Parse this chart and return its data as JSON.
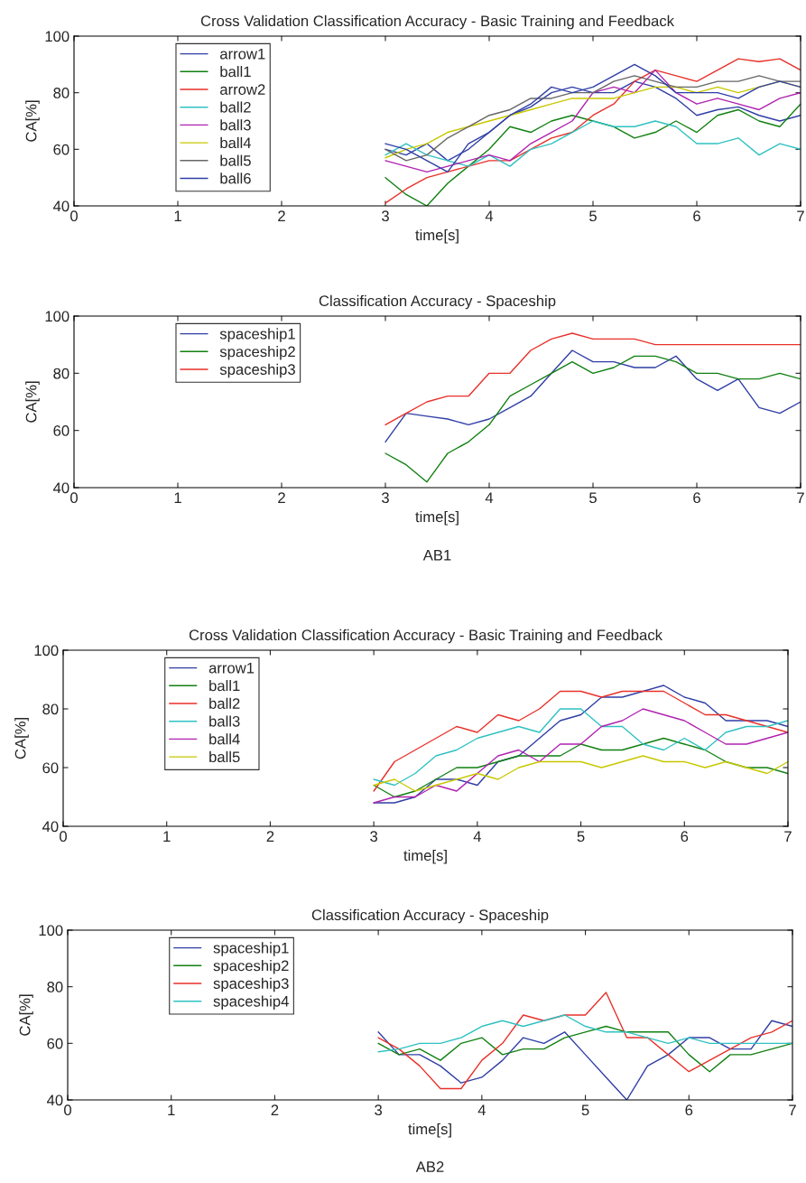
{
  "chart_data": [
    {
      "type": "line",
      "title": "Cross Validation Classification Accuracy - Basic Training and Feedback",
      "xlabel": "time[s]",
      "ylabel": "CA[%]",
      "xlim": [
        0,
        7
      ],
      "xticks": [
        0,
        1,
        2,
        3,
        4,
        5,
        6,
        7
      ],
      "ylim": [
        40,
        100
      ],
      "yticks": [
        40,
        60,
        80,
        100
      ],
      "grid": false,
      "legend": "top left",
      "x": [
        3.0,
        3.2,
        3.4,
        3.6,
        3.8,
        4.0,
        4.2,
        4.4,
        4.6,
        4.8,
        5.0,
        5.2,
        5.4,
        5.6,
        5.8,
        6.0,
        6.2,
        6.4,
        6.6,
        6.8,
        7.0
      ],
      "series": [
        {
          "name": "arrow1",
          "color": "#2f3ea5",
          "values": [
            60,
            58,
            62,
            56,
            60,
            66,
            72,
            75,
            80,
            82,
            80,
            80,
            84,
            82,
            78,
            72,
            74,
            75,
            72,
            70,
            72
          ]
        },
        {
          "name": "ball1",
          "color": "#118011",
          "values": [
            50,
            44,
            40,
            48,
            54,
            60,
            68,
            66,
            70,
            72,
            70,
            68,
            64,
            66,
            70,
            66,
            72,
            74,
            70,
            68,
            76
          ]
        },
        {
          "name": "arrow2",
          "color": "#e8312a",
          "values": [
            41,
            46,
            50,
            52,
            54,
            56,
            56,
            60,
            64,
            66,
            72,
            76,
            84,
            88,
            86,
            84,
            88,
            92,
            91,
            92,
            88
          ]
        },
        {
          "name": "ball2",
          "color": "#2fc1c1",
          "values": [
            58,
            62,
            58,
            56,
            54,
            58,
            54,
            60,
            62,
            66,
            70,
            68,
            68,
            70,
            68,
            62,
            62,
            64,
            58,
            62,
            60
          ]
        },
        {
          "name": "ball3",
          "color": "#b022b0",
          "values": [
            56,
            54,
            52,
            54,
            56,
            58,
            56,
            62,
            66,
            70,
            80,
            82,
            80,
            88,
            80,
            76,
            78,
            76,
            74,
            78,
            80
          ]
        },
        {
          "name": "ball4",
          "color": "#c8c800",
          "values": [
            57,
            60,
            62,
            66,
            68,
            70,
            72,
            74,
            76,
            78,
            78,
            78,
            80,
            82,
            82,
            80,
            82,
            80,
            82,
            84,
            82
          ]
        },
        {
          "name": "ball5",
          "color": "#666666",
          "values": [
            60,
            56,
            58,
            64,
            68,
            72,
            74,
            78,
            78,
            80,
            80,
            84,
            86,
            84,
            82,
            82,
            84,
            84,
            86,
            84,
            84
          ]
        },
        {
          "name": "ball6",
          "color": "#2f3ea5",
          "values": [
            62,
            60,
            56,
            52,
            62,
            66,
            72,
            76,
            82,
            80,
            82,
            86,
            90,
            86,
            80,
            80,
            80,
            78,
            82,
            84,
            82
          ]
        }
      ]
    },
    {
      "type": "line",
      "title": "Classification Accuracy - Spaceship",
      "xlabel": "time[s]",
      "ylabel": "CA[%]",
      "xlim": [
        0,
        7
      ],
      "xticks": [
        0,
        1,
        2,
        3,
        4,
        5,
        6,
        7
      ],
      "ylim": [
        40,
        100
      ],
      "yticks": [
        40,
        60,
        80,
        100
      ],
      "grid": false,
      "legend": "top left",
      "annotations": [
        "AB1"
      ],
      "x": [
        3.0,
        3.2,
        3.4,
        3.6,
        3.8,
        4.0,
        4.2,
        4.4,
        4.6,
        4.8,
        5.0,
        5.2,
        5.4,
        5.6,
        5.8,
        6.0,
        6.2,
        6.4,
        6.6,
        6.8,
        7.0
      ],
      "series": [
        {
          "name": "spaceship1",
          "color": "#2f3ea5",
          "values": [
            56,
            66,
            65,
            64,
            62,
            64,
            68,
            72,
            80,
            88,
            84,
            84,
            82,
            82,
            86,
            78,
            74,
            78,
            68,
            66,
            70
          ]
        },
        {
          "name": "spaceship2",
          "color": "#118011",
          "values": [
            52,
            48,
            42,
            52,
            56,
            62,
            72,
            76,
            80,
            84,
            80,
            82,
            86,
            86,
            84,
            80,
            80,
            78,
            78,
            80,
            78
          ]
        },
        {
          "name": "spaceship3",
          "color": "#e8312a",
          "values": [
            62,
            66,
            70,
            72,
            72,
            80,
            80,
            88,
            92,
            94,
            92,
            92,
            92,
            90,
            90,
            90,
            90,
            90,
            90,
            90,
            90
          ]
        }
      ]
    },
    {
      "type": "line",
      "title": "Cross Validation Classification Accuracy - Basic Training and Feedback",
      "xlabel": "time[s]",
      "ylabel": "CA[%]",
      "xlim": [
        0,
        7
      ],
      "xticks": [
        0,
        1,
        2,
        3,
        4,
        5,
        6,
        7
      ],
      "ylim": [
        40,
        100
      ],
      "yticks": [
        40,
        60,
        80,
        100
      ],
      "grid": false,
      "legend": "top left",
      "x": [
        3.0,
        3.2,
        3.4,
        3.6,
        3.8,
        4.0,
        4.2,
        4.4,
        4.6,
        4.8,
        5.0,
        5.2,
        5.4,
        5.6,
        5.8,
        6.0,
        6.2,
        6.4,
        6.6,
        6.8,
        7.0
      ],
      "series": [
        {
          "name": "arrow1",
          "color": "#2f3ea5",
          "values": [
            48,
            48,
            50,
            56,
            56,
            54,
            62,
            64,
            70,
            76,
            78,
            84,
            84,
            86,
            88,
            84,
            82,
            76,
            76,
            76,
            74
          ]
        },
        {
          "name": "ball1",
          "color": "#118011",
          "values": [
            54,
            50,
            52,
            56,
            60,
            60,
            62,
            64,
            64,
            64,
            68,
            66,
            66,
            68,
            70,
            68,
            66,
            62,
            60,
            60,
            58
          ]
        },
        {
          "name": "ball2",
          "color": "#e8312a",
          "values": [
            52,
            62,
            66,
            70,
            74,
            72,
            78,
            76,
            80,
            86,
            86,
            84,
            86,
            86,
            86,
            82,
            78,
            78,
            76,
            74,
            72
          ]
        },
        {
          "name": "ball3",
          "color": "#2fc1c1",
          "values": [
            56,
            54,
            58,
            64,
            66,
            70,
            72,
            74,
            72,
            80,
            80,
            74,
            74,
            68,
            66,
            70,
            66,
            72,
            74,
            74,
            76
          ]
        },
        {
          "name": "ball4",
          "color": "#b022b0",
          "values": [
            48,
            50,
            50,
            54,
            52,
            58,
            64,
            66,
            62,
            68,
            68,
            74,
            76,
            80,
            78,
            76,
            72,
            68,
            68,
            70,
            72
          ]
        },
        {
          "name": "ball5",
          "color": "#c8c800",
          "values": [
            54,
            56,
            52,
            54,
            56,
            58,
            56,
            60,
            62,
            62,
            62,
            60,
            62,
            64,
            62,
            62,
            60,
            62,
            60,
            58,
            62
          ]
        }
      ]
    },
    {
      "type": "line",
      "title": "Classification Accuracy - Spaceship",
      "xlabel": "time[s]",
      "ylabel": "CA[%]",
      "xlim": [
        0,
        7
      ],
      "xticks": [
        0,
        1,
        2,
        3,
        4,
        5,
        6,
        7
      ],
      "ylim": [
        40,
        100
      ],
      "yticks": [
        40,
        60,
        80,
        100
      ],
      "grid": false,
      "legend": "top left",
      "annotations": [
        "AB2"
      ],
      "x": [
        3.0,
        3.2,
        3.4,
        3.6,
        3.8,
        4.0,
        4.2,
        4.4,
        4.6,
        4.8,
        5.0,
        5.2,
        5.4,
        5.6,
        5.8,
        6.0,
        6.2,
        6.4,
        6.6,
        6.8,
        7.0
      ],
      "series": [
        {
          "name": "spaceship1",
          "color": "#2f3ea5",
          "values": [
            64,
            56,
            56,
            52,
            46,
            48,
            54,
            62,
            60,
            64,
            56,
            48,
            40,
            52,
            56,
            62,
            62,
            58,
            58,
            68,
            66
          ]
        },
        {
          "name": "spaceship2",
          "color": "#118011",
          "values": [
            60,
            56,
            58,
            54,
            60,
            62,
            56,
            58,
            58,
            62,
            64,
            66,
            64,
            64,
            64,
            56,
            50,
            56,
            56,
            58,
            60
          ]
        },
        {
          "name": "spaceship3",
          "color": "#e8312a",
          "values": [
            62,
            58,
            52,
            44,
            44,
            54,
            60,
            70,
            68,
            70,
            70,
            78,
            62,
            62,
            56,
            50,
            54,
            58,
            62,
            64,
            68
          ]
        },
        {
          "name": "spaceship4",
          "color": "#2fc1c1",
          "values": [
            57,
            58,
            60,
            60,
            62,
            66,
            68,
            66,
            68,
            70,
            66,
            64,
            64,
            62,
            60,
            62,
            60,
            60,
            60,
            60,
            60
          ]
        }
      ]
    }
  ]
}
